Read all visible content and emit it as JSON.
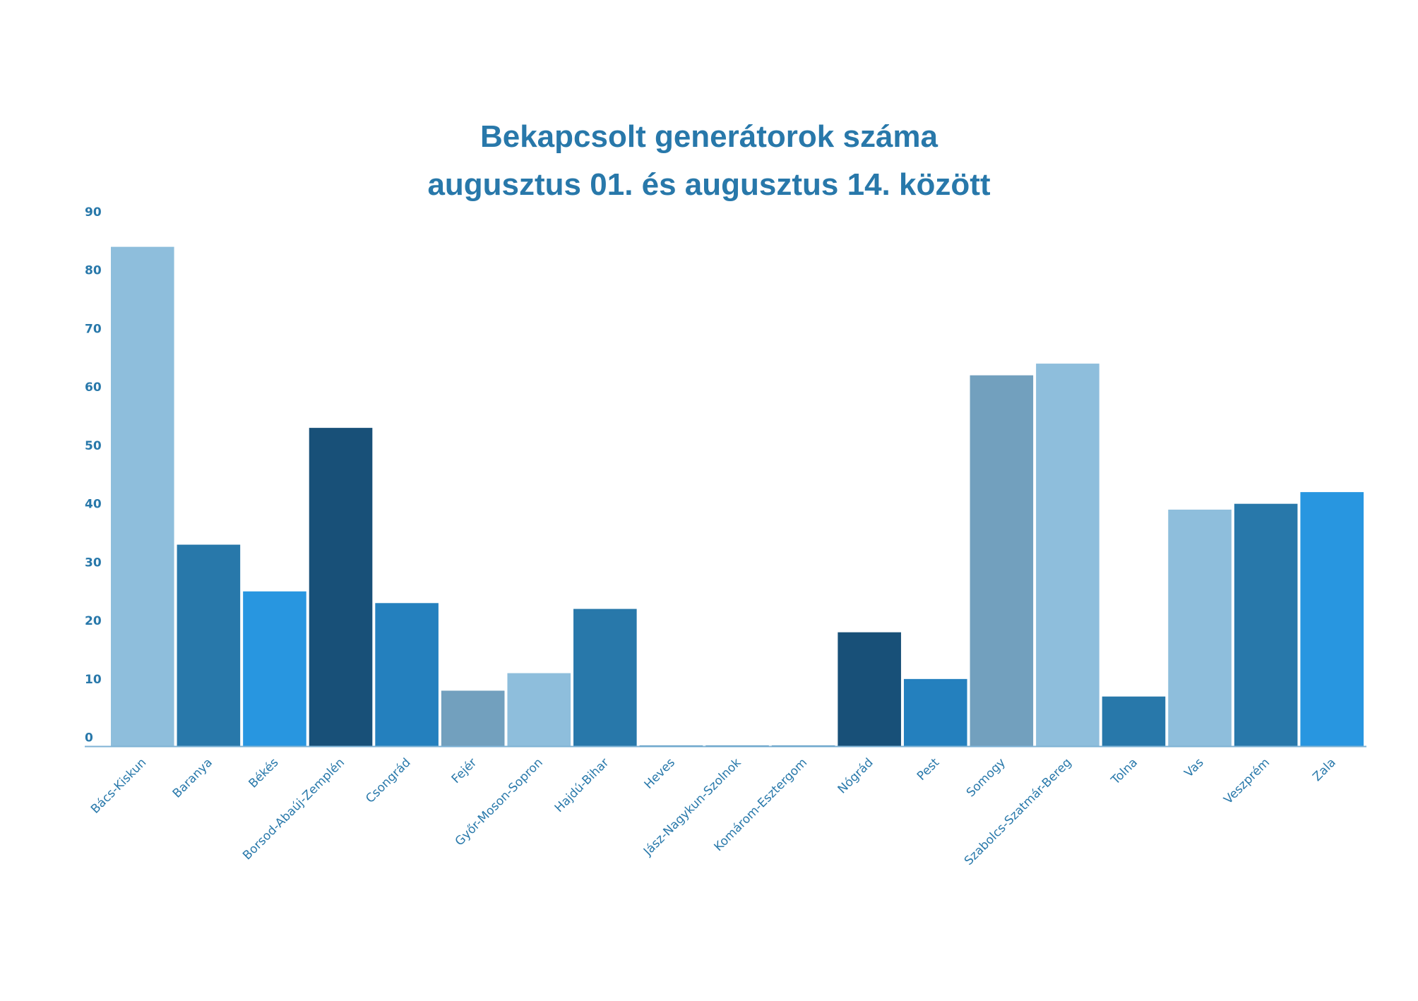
{
  "chart_data": {
    "type": "bar",
    "title": "Bekapcsolt generátorok száma",
    "subtitle": "augusztus 01. és augusztus 14. között",
    "categories": [
      "Bács-Kiskun",
      "Baranya",
      "Békés",
      "Borsod-Abaúj-Zemplén",
      "Csongrád",
      "Fejér",
      "Győr-Moson-Sopron",
      "Hajdú-Bihar",
      "Heves",
      "Jász-Nagykun-Szolnok",
      "Komárom-Esztergom",
      "Nógrád",
      "Pest",
      "Somogy",
      "Szabolcs-Szatmár-Bereg",
      "Tolna",
      "Vas",
      "Veszprém",
      "Zala"
    ],
    "values": [
      84,
      33,
      25,
      53,
      23,
      8,
      11,
      22,
      0,
      0,
      0,
      18,
      10,
      62,
      64,
      7,
      39,
      40,
      42
    ],
    "bar_colors": [
      "#8ebedc",
      "#2878aa",
      "#2896e0",
      "#185078",
      "#2480be",
      "#72a0be",
      "#8ebedc",
      "#2878aa",
      "#2878aa",
      "#2878aa",
      "#2878aa",
      "#185078",
      "#2480be",
      "#72a0be",
      "#8ebedc",
      "#2878aa",
      "#8ebedc",
      "#2878aa",
      "#2896e0"
    ],
    "yticks": [
      0,
      10,
      20,
      30,
      40,
      50,
      60,
      70,
      80,
      90
    ],
    "ylim": [
      -1.5,
      90
    ],
    "grid": false,
    "legend": "none",
    "colors": {
      "title": "#2878aa",
      "tick_text": "#2878aa",
      "axis": "#7fb3d5"
    }
  }
}
